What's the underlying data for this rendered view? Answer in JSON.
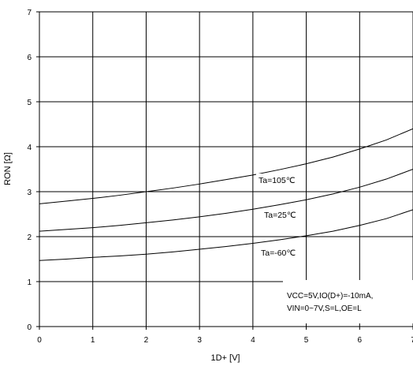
{
  "chart_data": {
    "type": "line",
    "xlabel": "1D+ [V]",
    "ylabel": "RON [Ω]",
    "xlim": [
      0,
      7
    ],
    "ylim": [
      0,
      7
    ],
    "xticks": [
      "0",
      "1",
      "2",
      "3",
      "4",
      "5",
      "6",
      "7"
    ],
    "yticks": [
      "0",
      "1",
      "2",
      "3",
      "4",
      "5",
      "6",
      "7"
    ],
    "grid": true,
    "series": [
      {
        "name": "Ta=105℃",
        "x": [
          0,
          0.5,
          1,
          1.5,
          2,
          2.5,
          3,
          3.5,
          4,
          4.5,
          5,
          5.5,
          6,
          6.5,
          7
        ],
        "y": [
          2.73,
          2.79,
          2.85,
          2.92,
          3.0,
          3.08,
          3.17,
          3.27,
          3.37,
          3.49,
          3.62,
          3.77,
          3.95,
          4.15,
          4.4
        ]
      },
      {
        "name": "Ta=25℃",
        "x": [
          0,
          0.5,
          1,
          1.5,
          2,
          2.5,
          3,
          3.5,
          4,
          4.5,
          5,
          5.5,
          6,
          6.5,
          7
        ],
        "y": [
          2.12,
          2.16,
          2.2,
          2.25,
          2.31,
          2.37,
          2.44,
          2.52,
          2.61,
          2.71,
          2.82,
          2.95,
          3.1,
          3.28,
          3.5
        ]
      },
      {
        "name": "Ta=-60℃",
        "x": [
          0,
          0.5,
          1,
          1.5,
          2,
          2.5,
          3,
          3.5,
          4,
          4.5,
          5,
          5.5,
          6,
          6.5,
          7
        ],
        "y": [
          1.47,
          1.5,
          1.54,
          1.57,
          1.61,
          1.66,
          1.72,
          1.78,
          1.85,
          1.93,
          2.02,
          2.12,
          2.25,
          2.4,
          2.6
        ]
      }
    ],
    "annotations": [
      "VCC=5V,IO(D+)=-10mA,",
      "VIN=0~7V,S=L,OE=L"
    ]
  }
}
